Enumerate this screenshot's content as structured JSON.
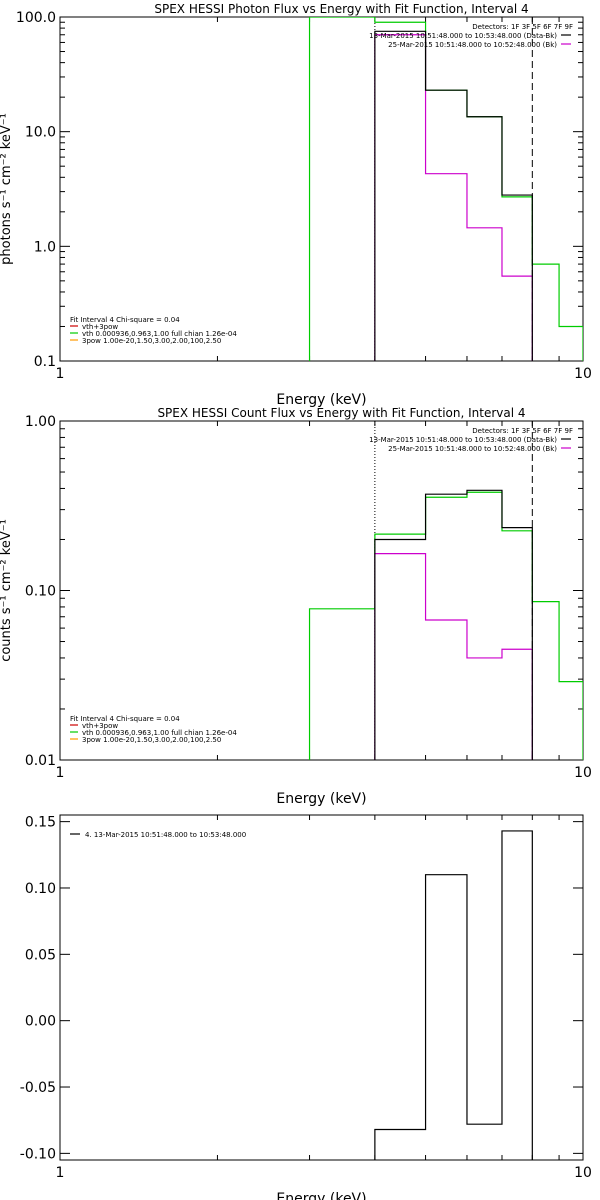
{
  "chart_data": [
    {
      "type": "line",
      "title": "SPEX HESSI Photon Flux vs Energy with Fit Function, Interval 4",
      "xlabel": "Energy (keV)",
      "ylabel": "photons s⁻¹ cm⁻² keV⁻¹",
      "x_scale": "log",
      "y_scale": "log",
      "xlim": [
        1,
        10
      ],
      "ylim": [
        0.1,
        100
      ],
      "x_ticks": [
        {
          "v": 1,
          "label": "1"
        },
        {
          "v": 10,
          "label": "10"
        }
      ],
      "y_ticks": [
        {
          "v": 0.1,
          "label": "0.1"
        },
        {
          "v": 1,
          "label": "1.0"
        },
        {
          "v": 10,
          "label": "10.0"
        },
        {
          "v": 100,
          "label": "100.0"
        }
      ],
      "legend_right": {
        "header": "Detectors: 1F 3F 5F 6F 7F 9F",
        "entries": [
          {
            "text": "13-Mar-2015 10:51:48.000 to 10:53:48.000 (Data-Bk)",
            "color": "#000000"
          },
          {
            "text": "25-Mar-2015 10:51:48.000 to 10:52:48.000 (Bk)",
            "color": "#cc00cc"
          }
        ]
      },
      "legend_left": {
        "header": "Fit Interval  4    Chi-square = 0.04",
        "entries": [
          {
            "text": "vth+3pow",
            "color": "#cc0000"
          },
          {
            "text": "vth 0.000936,0.963,1.00  full chian 1.26e-04",
            "color": "#00cc00"
          },
          {
            "text": "3pow 1.00e-20,1.50,3.00,2.00,100,2.50",
            "color": "#ff9900"
          }
        ]
      },
      "vlines": [
        {
          "x": 4.0,
          "style": "dotted"
        },
        {
          "x": 8.0,
          "style": "dashed"
        }
      ],
      "series": [
        {
          "color": "#00cc00",
          "edges": [
            3.0,
            4.0,
            5.0,
            6.0,
            7.0,
            8.0,
            9.0,
            10.0
          ],
          "values": [
            100,
            90,
            23,
            13.5,
            2.7,
            0.7,
            0.2
          ]
        },
        {
          "color": "#cc00cc",
          "edges": [
            4.0,
            5.0,
            6.0,
            7.0,
            8.0
          ],
          "values": [
            70,
            4.3,
            1.45,
            0.55
          ]
        },
        {
          "color": "#000000",
          "edges": [
            4.0,
            5.0,
            6.0,
            7.0,
            8.0
          ],
          "values": [
            75,
            23,
            13.5,
            2.8
          ]
        }
      ]
    },
    {
      "type": "line",
      "title": "SPEX HESSI Count Flux vs Energy with Fit Function, Interval 4",
      "xlabel": "Energy (keV)",
      "ylabel": "counts s⁻¹ cm⁻² keV⁻¹",
      "x_scale": "log",
      "y_scale": "log",
      "xlim": [
        1,
        10
      ],
      "ylim": [
        0.01,
        1
      ],
      "x_ticks": [
        {
          "v": 1,
          "label": "1"
        },
        {
          "v": 10,
          "label": "10"
        }
      ],
      "y_ticks": [
        {
          "v": 0.01,
          "label": "0.01"
        },
        {
          "v": 0.1,
          "label": "0.10"
        },
        {
          "v": 1,
          "label": "1.00"
        }
      ],
      "legend_right": {
        "header": "Detectors: 1F 3F 5F 6F 7F 9F",
        "entries": [
          {
            "text": "13-Mar-2015 10:51:48.000 to 10:53:48.000 (Data-Bk)",
            "color": "#000000"
          },
          {
            "text": "25-Mar-2015 10:51:48.000 to 10:52:48.000 (Bk)",
            "color": "#cc00cc"
          }
        ]
      },
      "legend_left": {
        "header": "Fit Interval  4    Chi-square = 0.04",
        "entries": [
          {
            "text": "vth+3pow",
            "color": "#cc0000"
          },
          {
            "text": "vth 0.000936,0.963,1.00  full chian 1.26e-04",
            "color": "#00cc00"
          },
          {
            "text": "3pow 1.00e-20,1.50,3.00,2.00,100,2.50",
            "color": "#ff9900"
          }
        ]
      },
      "vlines": [
        {
          "x": 4.0,
          "style": "dotted"
        },
        {
          "x": 8.0,
          "style": "dashed"
        }
      ],
      "series": [
        {
          "color": "#00cc00",
          "edges": [
            3.0,
            4.0,
            5.0,
            6.0,
            7.0,
            8.0,
            9.0,
            10.0
          ],
          "values": [
            0.078,
            0.215,
            0.355,
            0.38,
            0.225,
            0.086,
            0.029
          ]
        },
        {
          "color": "#cc00cc",
          "edges": [
            4.0,
            5.0,
            6.0,
            7.0,
            8.0
          ],
          "values": [
            0.165,
            0.067,
            0.04,
            0.045
          ]
        },
        {
          "color": "#000000",
          "edges": [
            4.0,
            5.0,
            6.0,
            7.0,
            8.0
          ],
          "values": [
            0.2,
            0.37,
            0.39,
            0.235
          ]
        }
      ]
    },
    {
      "type": "line",
      "title": "",
      "xlabel": "Energy (keV)",
      "ylabel": "",
      "x_scale": "log",
      "y_scale": "linear",
      "xlim": [
        1,
        10
      ],
      "ylim": [
        -0.105,
        0.155
      ],
      "x_ticks": [
        {
          "v": 1,
          "label": "1"
        },
        {
          "v": 10,
          "label": "10"
        }
      ],
      "y_ticks": [
        {
          "v": 0.15,
          "label": "0.15"
        },
        {
          "v": 0.1,
          "label": "0.10"
        },
        {
          "v": 0.05,
          "label": "0.05"
        },
        {
          "v": 0.0,
          "label": "0.00"
        },
        {
          "v": -0.05,
          "label": "-0.05"
        },
        {
          "v": -0.1,
          "label": "-0.10"
        }
      ],
      "legend_left": {
        "header": "",
        "entries": [
          {
            "text": "4. 13-Mar-2015 10:51:48.000 to 10:53:48.000",
            "color": "#000000"
          }
        ]
      },
      "vlines": [],
      "series": [
        {
          "color": "#000000",
          "edges": [
            4.0,
            5.0,
            6.0,
            7.0,
            8.0
          ],
          "values": [
            -0.082,
            0.11,
            -0.078,
            0.143
          ]
        }
      ]
    }
  ]
}
